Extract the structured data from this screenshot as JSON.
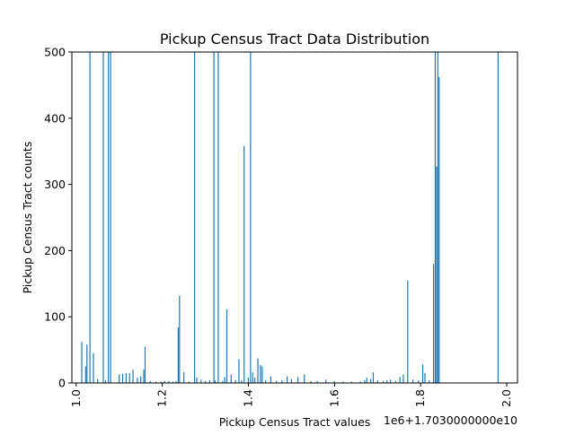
{
  "chart_data": {
    "type": "bar",
    "title": "Pickup Census Tract Data Distribution",
    "xlabel": "Pickup Census Tract values",
    "ylabel": "Pickup Census Tract counts",
    "x_offset_label": "1e6+1.7030000000e10",
    "xlim": [
      0.99,
      2.025
    ],
    "ylim": [
      0,
      500
    ],
    "x_ticks": [
      1.0,
      1.2,
      1.4,
      1.6,
      1.8,
      2.0
    ],
    "x_tick_labels": [
      "1.0",
      "1.2",
      "1.4",
      "1.6",
      "1.8",
      "2.0"
    ],
    "y_ticks": [
      0,
      100,
      200,
      300,
      400,
      500
    ],
    "y_tick_labels": [
      "0",
      "100",
      "200",
      "300",
      "400",
      "500"
    ],
    "grid": false,
    "bar_color": "#1f77b4",
    "bar_width": 0.002,
    "series": [
      {
        "x": [
          1.013,
          1.022,
          1.025,
          1.032,
          1.04,
          1.05,
          1.063,
          1.068,
          1.075,
          1.08,
          1.1,
          1.108,
          1.116,
          1.124,
          1.132,
          1.142,
          1.15,
          1.157,
          1.16,
          1.172,
          1.185,
          1.197,
          1.205,
          1.215,
          1.225,
          1.232,
          1.237,
          1.24,
          1.25,
          1.262,
          1.275,
          1.28,
          1.29,
          1.3,
          1.31,
          1.32,
          1.323,
          1.33,
          1.34,
          1.345,
          1.35,
          1.36,
          1.37,
          1.378,
          1.384,
          1.39,
          1.4,
          1.405,
          1.41,
          1.415,
          1.422,
          1.428,
          1.432,
          1.44,
          1.452,
          1.465,
          1.478,
          1.49,
          1.5,
          1.515,
          1.53,
          1.545,
          1.56,
          1.58,
          1.6,
          1.62,
          1.64,
          1.66,
          1.67,
          1.675,
          1.684,
          1.69,
          1.7,
          1.713,
          1.722,
          1.73,
          1.742,
          1.752,
          1.76,
          1.77,
          1.782,
          1.795,
          1.805,
          1.81,
          1.82,
          1.83,
          1.834,
          1.837,
          1.84,
          1.843,
          1.98
        ],
        "values": [
          62,
          25,
          58,
          500,
          45,
          6,
          500,
          4,
          500,
          500,
          13,
          14,
          15,
          15,
          20,
          8,
          10,
          20,
          55,
          3,
          2,
          2,
          3,
          3,
          2,
          3,
          84,
          132,
          16,
          2,
          500,
          8,
          5,
          3,
          4,
          500,
          4,
          500,
          3,
          9,
          111,
          13,
          4,
          36,
          4,
          358,
          8,
          500,
          16,
          8,
          37,
          27,
          25,
          4,
          10,
          3,
          4,
          10,
          6,
          9,
          13,
          3,
          3,
          5,
          3,
          2,
          2,
          2,
          4,
          8,
          6,
          16,
          4,
          3,
          4,
          5,
          3,
          9,
          13,
          155,
          5,
          4,
          28,
          15,
          4,
          180,
          500,
          327,
          500,
          462,
          500
        ]
      }
    ]
  }
}
